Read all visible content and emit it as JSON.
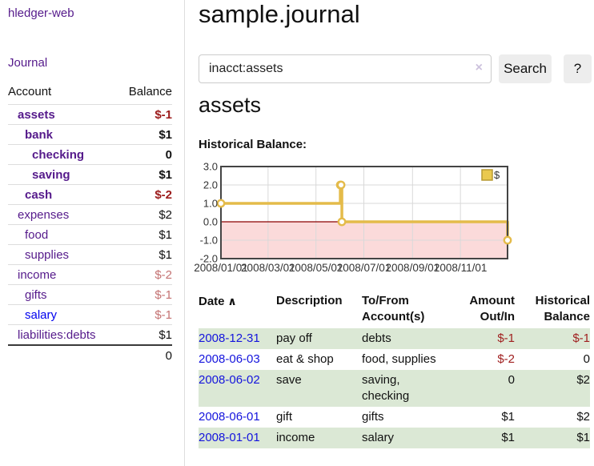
{
  "sidebar": {
    "app_title": "hledger-web",
    "journal_label": "Journal",
    "accounts_table": {
      "headers": {
        "account": "Account",
        "balance": "Balance"
      },
      "rows": [
        {
          "name": "assets",
          "indent": 1,
          "bold": true,
          "link": "visited",
          "balance": "$-1",
          "balance_style": "neg-strong"
        },
        {
          "name": "bank",
          "indent": 2,
          "bold": true,
          "link": "visited",
          "balance": "$1",
          "balance_style": ""
        },
        {
          "name": "checking",
          "indent": 3,
          "bold": true,
          "link": "visited",
          "balance": "0",
          "balance_style": ""
        },
        {
          "name": "saving",
          "indent": 3,
          "bold": true,
          "link": "visited",
          "balance": "$1",
          "balance_style": ""
        },
        {
          "name": "cash",
          "indent": 2,
          "bold": true,
          "link": "visited",
          "balance": "$-2",
          "balance_style": "neg-strong"
        },
        {
          "name": "expenses",
          "indent": 1,
          "bold": false,
          "link": "visited",
          "balance": "$2",
          "balance_style": ""
        },
        {
          "name": "food",
          "indent": 2,
          "bold": false,
          "link": "visited",
          "balance": "$1",
          "balance_style": ""
        },
        {
          "name": "supplies",
          "indent": 2,
          "bold": false,
          "link": "visited",
          "balance": "$1",
          "balance_style": ""
        },
        {
          "name": "income",
          "indent": 1,
          "bold": false,
          "link": "visited",
          "balance": "$-2",
          "balance_style": "neg-soft"
        },
        {
          "name": "gifts",
          "indent": 2,
          "bold": false,
          "link": "visited",
          "balance": "$-1",
          "balance_style": "neg-soft"
        },
        {
          "name": "salary",
          "indent": 2,
          "bold": false,
          "link": "new",
          "balance": "$-1",
          "balance_style": "neg-soft"
        },
        {
          "name": "liabilities:debts",
          "indent": 1,
          "bold": false,
          "link": "visited",
          "balance": "$1",
          "balance_style": ""
        }
      ],
      "total": "0"
    }
  },
  "header": {
    "title": "sample.journal"
  },
  "search": {
    "query": "inacct:assets",
    "clear_icon": "×",
    "search_label": "Search",
    "help_label": "?"
  },
  "account_view": {
    "heading": "assets",
    "chart_label": "Historical Balance:"
  },
  "chart_data": {
    "type": "line",
    "step": true,
    "title": "Historical Balance",
    "series": [
      {
        "name": "$",
        "points": [
          [
            "2008-01-01",
            1
          ],
          [
            "2008-06-01",
            2
          ],
          [
            "2008-06-02",
            2
          ],
          [
            "2008-06-03",
            0
          ],
          [
            "2008-12-31",
            -1
          ]
        ]
      }
    ],
    "x_domain": [
      "2008-01-01",
      "2008-12-31"
    ],
    "x_ticks": [
      "2008/01/01",
      "2008/03/01",
      "2008/05/01",
      "2008/07/01",
      "2008/09/01",
      "2008/11/01"
    ],
    "y_ticks": [
      3.0,
      2.0,
      1.0,
      0.0,
      -1.0,
      -2.0
    ],
    "ylim": [
      -2,
      3
    ],
    "grid": true,
    "legend_position": "top-right",
    "legend_label": "$"
  },
  "register_table": {
    "headers": [
      {
        "label": "Date",
        "sorted": true,
        "sort_icon": "∧",
        "align": "left"
      },
      {
        "label": "Description",
        "align": "left"
      },
      {
        "label": "To/From Account(s)",
        "align": "left"
      },
      {
        "label": "Amount Out/In",
        "align": "right"
      },
      {
        "label": "Historical Balance",
        "align": "right"
      }
    ],
    "rows": [
      {
        "date": "2008-12-31",
        "description": "pay off",
        "accounts": "debts",
        "amount": "$-1",
        "amount_neg": true,
        "balance": "$-1",
        "balance_neg": true
      },
      {
        "date": "2008-06-03",
        "description": "eat & shop",
        "accounts": "food, supplies",
        "amount": "$-2",
        "amount_neg": true,
        "balance": "0",
        "balance_neg": false
      },
      {
        "date": "2008-06-02",
        "description": "save",
        "accounts": "saving, checking",
        "amount": "0",
        "amount_neg": false,
        "balance": "$2",
        "balance_neg": false
      },
      {
        "date": "2008-06-01",
        "description": "gift",
        "accounts": "gifts",
        "amount": "$1",
        "amount_neg": false,
        "balance": "$2",
        "balance_neg": false
      },
      {
        "date": "2008-01-01",
        "description": "income",
        "accounts": "salary",
        "amount": "$1",
        "amount_neg": false,
        "balance": "$1",
        "balance_neg": false
      }
    ]
  },
  "colors": {
    "link_visited": "#551a8b",
    "link_unvisited": "#0000ee",
    "negative_strong": "#9c1b1b",
    "negative_soft": "#c47272",
    "negative_table": "#a02020",
    "row_stripe_green": "#dbe8d5",
    "series_gold": "#e4bb4a",
    "legend_fill": "#eac94f",
    "negative_region": "#fbdada",
    "zero_line": "#8b0000",
    "chart_frame": "#444444",
    "gridline": "#d9d9d9",
    "button_bg": "#ededed"
  }
}
